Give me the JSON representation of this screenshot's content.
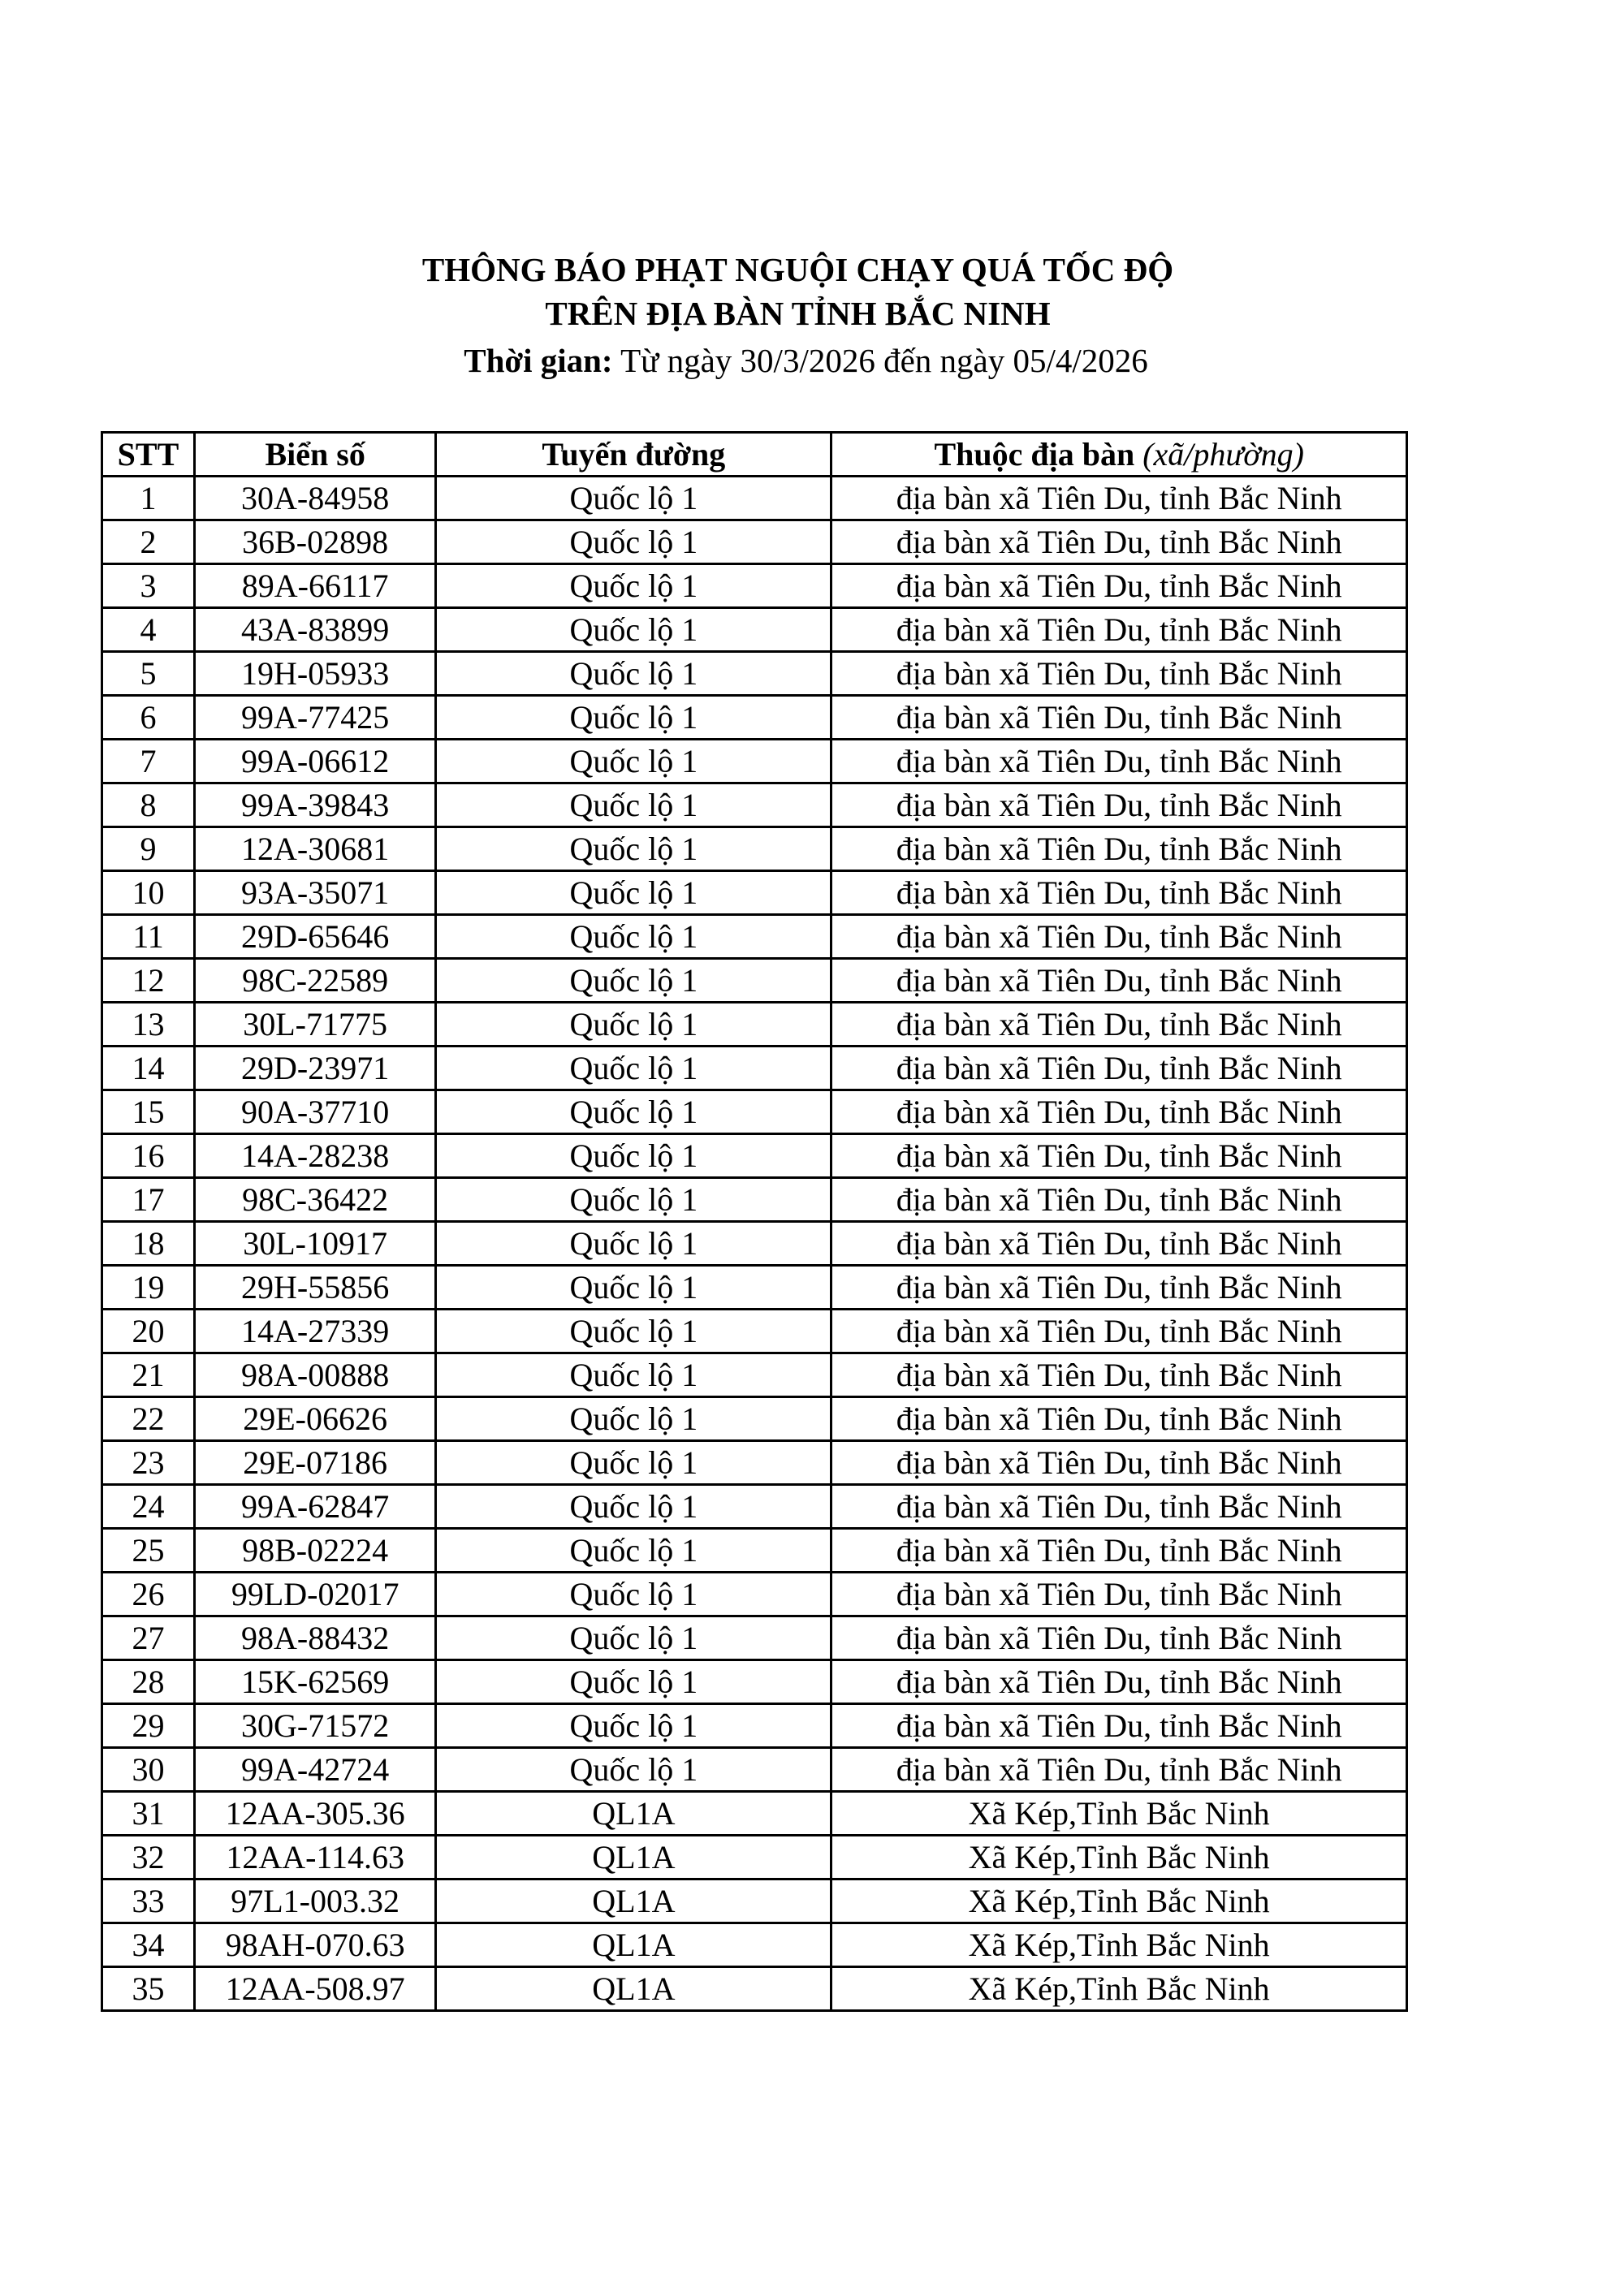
{
  "document": {
    "title_line1": "THÔNG BÁO PHẠT NGUỘI CHẠY QUÁ TỐC ĐỘ",
    "title_line2": "TRÊN ĐỊA BÀN TỈNH BẮC NINH",
    "period_label": "Thời gian:",
    "period_value": " Từ ngày 30/3/2026 đến ngày 05/4/2026"
  },
  "table": {
    "headers": {
      "stt": "STT",
      "plate": "Biển số",
      "route": "Tuyến đường",
      "area": "Thuộc địa bàn ",
      "area_italic": "(xã/phường)"
    },
    "rows": [
      [
        "1",
        "30A-84958",
        "Quốc lộ 1",
        "địa bàn xã Tiên Du, tỉnh Bắc Ninh"
      ],
      [
        "2",
        "36B-02898",
        "Quốc lộ 1",
        "địa bàn xã Tiên Du, tỉnh Bắc Ninh"
      ],
      [
        "3",
        "89A-66117",
        "Quốc lộ 1",
        "địa bàn xã Tiên Du, tỉnh Bắc Ninh"
      ],
      [
        "4",
        "43A-83899",
        "Quốc lộ 1",
        "địa bàn xã Tiên Du, tỉnh Bắc Ninh"
      ],
      [
        "5",
        "19H-05933",
        "Quốc lộ 1",
        "địa bàn xã Tiên Du, tỉnh Bắc Ninh"
      ],
      [
        "6",
        "99A-77425",
        "Quốc lộ 1",
        "địa bàn xã Tiên Du, tỉnh Bắc Ninh"
      ],
      [
        "7",
        "99A-06612",
        "Quốc lộ 1",
        "địa bàn xã Tiên Du, tỉnh Bắc Ninh"
      ],
      [
        "8",
        "99A-39843",
        "Quốc lộ 1",
        "địa bàn xã Tiên Du, tỉnh Bắc Ninh"
      ],
      [
        "9",
        "12A-30681",
        "Quốc lộ 1",
        "địa bàn xã Tiên Du, tỉnh Bắc Ninh"
      ],
      [
        "10",
        "93A-35071",
        "Quốc lộ 1",
        "địa bàn xã Tiên Du, tỉnh Bắc Ninh"
      ],
      [
        "11",
        "29D-65646",
        "Quốc lộ 1",
        "địa bàn xã Tiên Du, tỉnh Bắc Ninh"
      ],
      [
        "12",
        "98C-22589",
        "Quốc lộ 1",
        "địa bàn xã Tiên Du, tỉnh Bắc Ninh"
      ],
      [
        "13",
        "30L-71775",
        "Quốc lộ 1",
        "địa bàn xã Tiên Du, tỉnh Bắc Ninh"
      ],
      [
        "14",
        "29D-23971",
        "Quốc lộ 1",
        "địa bàn xã Tiên Du, tỉnh Bắc Ninh"
      ],
      [
        "15",
        "90A-37710",
        "Quốc lộ 1",
        "địa bàn xã Tiên Du, tỉnh Bắc Ninh"
      ],
      [
        "16",
        "14A-28238",
        "Quốc lộ 1",
        "địa bàn xã Tiên Du, tỉnh Bắc Ninh"
      ],
      [
        "17",
        "98C-36422",
        "Quốc lộ 1",
        "địa bàn xã Tiên Du, tỉnh Bắc Ninh"
      ],
      [
        "18",
        "30L-10917",
        "Quốc lộ 1",
        "địa bàn xã Tiên Du, tỉnh Bắc Ninh"
      ],
      [
        "19",
        "29H-55856",
        "Quốc lộ 1",
        "địa bàn xã Tiên Du, tỉnh Bắc Ninh"
      ],
      [
        "20",
        "14A-27339",
        "Quốc lộ 1",
        "địa bàn xã Tiên Du, tỉnh Bắc Ninh"
      ],
      [
        "21",
        "98A-00888",
        "Quốc lộ 1",
        "địa bàn xã Tiên Du, tỉnh Bắc Ninh"
      ],
      [
        "22",
        "29E-06626",
        "Quốc lộ 1",
        "địa bàn xã Tiên Du, tỉnh Bắc Ninh"
      ],
      [
        "23",
        "29E-07186",
        "Quốc lộ 1",
        "địa bàn xã Tiên Du, tỉnh Bắc Ninh"
      ],
      [
        "24",
        "99A-62847",
        "Quốc lộ 1",
        "địa bàn xã Tiên Du, tỉnh Bắc Ninh"
      ],
      [
        "25",
        "98B-02224",
        "Quốc lộ 1",
        "địa bàn xã Tiên Du, tỉnh Bắc Ninh"
      ],
      [
        "26",
        "99LD-02017",
        "Quốc lộ 1",
        "địa bàn xã Tiên Du, tỉnh Bắc Ninh"
      ],
      [
        "27",
        "98A-88432",
        "Quốc lộ 1",
        "địa bàn xã Tiên Du, tỉnh Bắc Ninh"
      ],
      [
        "28",
        "15K-62569",
        "Quốc lộ 1",
        "địa bàn xã Tiên Du, tỉnh Bắc Ninh"
      ],
      [
        "29",
        "30G-71572",
        "Quốc lộ 1",
        "địa bàn xã Tiên Du, tỉnh Bắc Ninh"
      ],
      [
        "30",
        "99A-42724",
        "Quốc lộ 1",
        "địa bàn xã Tiên Du, tỉnh Bắc Ninh"
      ],
      [
        "31",
        "12AA-305.36",
        "QL1A",
        "Xã Kép,Tỉnh Bắc Ninh"
      ],
      [
        "32",
        "12AA-114.63",
        "QL1A",
        "Xã Kép,Tỉnh Bắc Ninh"
      ],
      [
        "33",
        "97L1-003.32",
        "QL1A",
        "Xã Kép,Tỉnh Bắc Ninh"
      ],
      [
        "34",
        "98AH-070.63",
        "QL1A",
        "Xã Kép,Tỉnh Bắc Ninh"
      ],
      [
        "35",
        "12AA-508.97",
        "QL1A",
        "Xã Kép,Tỉnh Bắc Ninh"
      ]
    ]
  }
}
